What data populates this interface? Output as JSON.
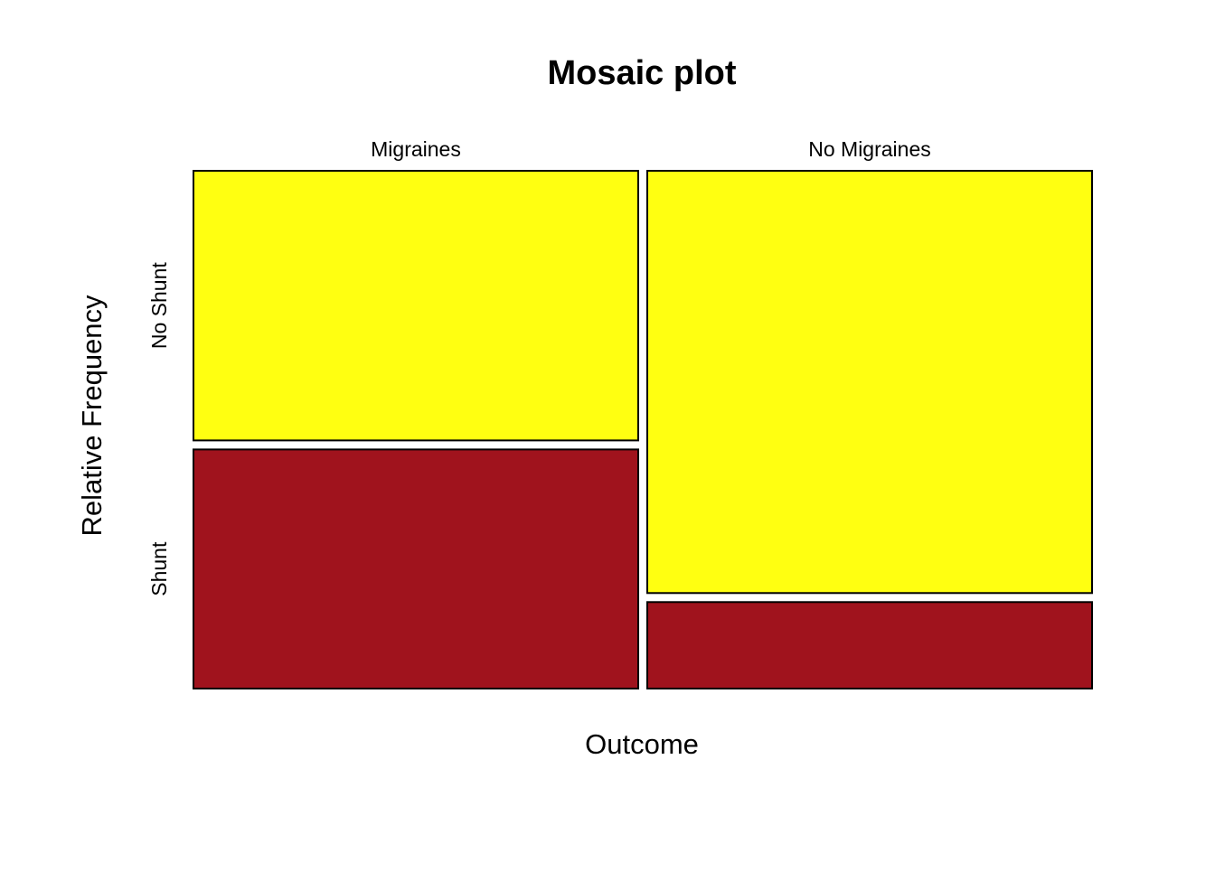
{
  "chart_data": {
    "type": "mosaic",
    "title": "Mosaic plot",
    "xlabel": "Outcome",
    "ylabel": "Relative Frequency",
    "x_categories": [
      "Migraines",
      "No Migraines"
    ],
    "y_categories": [
      "Shunt",
      "No Shunt"
    ],
    "x_widths": [
      0.5,
      0.5
    ],
    "series": [
      {
        "name": "Shunt",
        "values": [
          0.47,
          0.17
        ]
      },
      {
        "name": "No Shunt",
        "values": [
          0.53,
          0.83
        ]
      }
    ],
    "colors": {
      "Shunt": "#A0131D",
      "No Shunt": "#FFFF11"
    },
    "grid": false,
    "legend": "none"
  }
}
